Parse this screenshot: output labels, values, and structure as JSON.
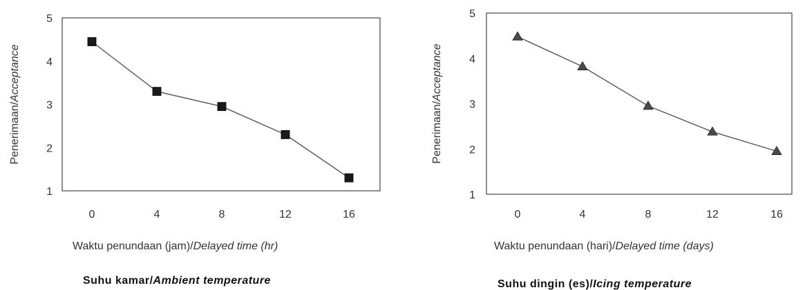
{
  "chart_data": [
    {
      "type": "line",
      "x": [
        0,
        4,
        8,
        12,
        16
      ],
      "series": [
        {
          "values": [
            4.45,
            3.3,
            2.95,
            2.3,
            1.3
          ],
          "marker": "square"
        }
      ],
      "xlabel_plain": "Waktu penundaan (jam)/",
      "xlabel_italic": "Delayed time (hr)",
      "ylabel_plain": "Penerimaan/",
      "ylabel_italic": "Acceptance",
      "caption_plain": "Suhu kamar/",
      "caption_italic": "Ambient temperature",
      "ylim": [
        1,
        5
      ],
      "yticks": [
        1,
        2,
        3,
        4,
        5
      ],
      "xticks": [
        0,
        4,
        8,
        12,
        16
      ],
      "grid": false,
      "line_color": "#555555",
      "marker_color": "#1a1a1a"
    },
    {
      "type": "line",
      "x": [
        0,
        4,
        8,
        12,
        16
      ],
      "series": [
        {
          "values": [
            4.48,
            3.82,
            2.95,
            2.38,
            1.95
          ],
          "marker": "triangle"
        }
      ],
      "xlabel_plain": "Waktu penundaan (hari)/",
      "xlabel_italic": "Delayed time (days)",
      "ylabel_plain": "Penerimaan/",
      "ylabel_italic": "Acceptance",
      "caption_plain": "Suhu dingin (es)/",
      "caption_italic": "Icing temperature",
      "ylim": [
        1,
        5
      ],
      "yticks": [
        1,
        2,
        3,
        4,
        5
      ],
      "xticks": [
        0,
        4,
        8,
        12,
        16
      ],
      "grid": false,
      "line_color": "#666666",
      "marker_color": "#4a4a4a"
    }
  ]
}
